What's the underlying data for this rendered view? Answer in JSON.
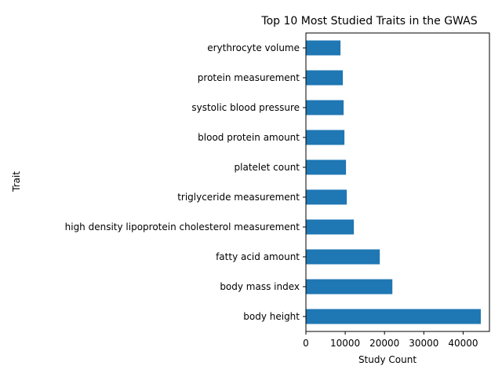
{
  "chart_data": {
    "type": "bar",
    "orientation": "horizontal",
    "title": "Top 10 Most Studied Traits in the GWAS",
    "xlabel": "Study Count",
    "ylabel": "Trait",
    "bar_color": "#1f77b4",
    "xlim": [
      0,
      46700
    ],
    "xticks": [
      0,
      10000,
      20000,
      30000,
      40000
    ],
    "grid": false,
    "legend": "none",
    "categories": [
      "body height",
      "body mass index",
      "fatty acid amount",
      "high density lipoprotein cholesterol measurement",
      "triglyceride measurement",
      "platelet count",
      "blood protein amount",
      "systolic blood pressure",
      "protein measurement",
      "erythrocyte volume"
    ],
    "values": [
      44500,
      22000,
      18800,
      12200,
      10400,
      10200,
      9800,
      9600,
      9400,
      8800
    ]
  }
}
